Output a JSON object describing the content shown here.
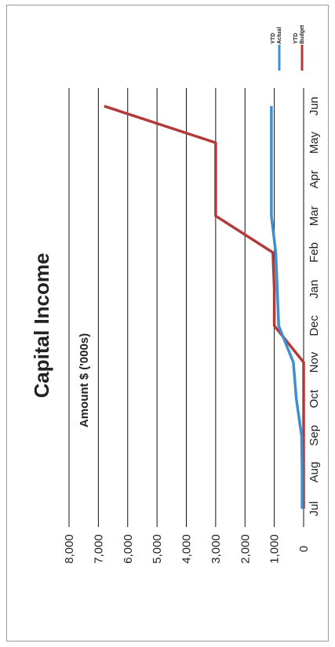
{
  "chart_data": {
    "type": "line",
    "orientation": "rotated-90-clockwise",
    "title": "Capital Income",
    "xlabel": "",
    "ylabel": "Amount $ ('000s)",
    "categories": [
      "Jul",
      "Aug",
      "Sep",
      "Oct",
      "Nov",
      "Dec",
      "Jan",
      "Feb",
      "Mar",
      "Apr",
      "May",
      "Jun"
    ],
    "yticks": [
      "0",
      "1,000",
      "2,000",
      "3,000",
      "4,000",
      "5,000",
      "6,000",
      "7,000",
      "8,000"
    ],
    "ylim": [
      0,
      8000
    ],
    "grid": true,
    "legend_position": "top-right",
    "series": [
      {
        "name": "YTD Actual",
        "color": "#3c8fd0",
        "values": [
          50,
          50,
          70,
          250,
          350,
          850,
          900,
          950,
          1100,
          1100,
          1100,
          1100
        ]
      },
      {
        "name": "YTD Budget",
        "color": "#b23a3a",
        "values": [
          0,
          0,
          0,
          0,
          0,
          1000,
          1000,
          1050,
          3000,
          3000,
          3000,
          6800
        ]
      }
    ]
  }
}
